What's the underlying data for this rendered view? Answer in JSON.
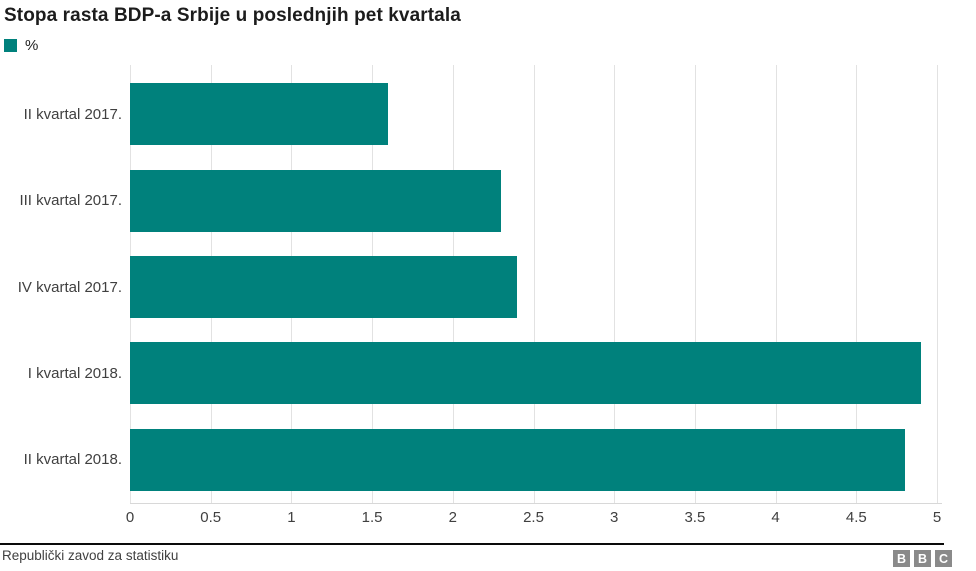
{
  "title": "Stopa rasta BDP-a Srbije u poslednjih pet kvartala",
  "legend": {
    "label": "%"
  },
  "chart_data": {
    "type": "bar",
    "orientation": "horizontal",
    "title": "Stopa rasta BDP-a Srbije u poslednjih pet kvartala",
    "series_name": "%",
    "categories": [
      "II kvartal 2017.",
      "III kvartal 2017.",
      "IV kvartal 2017.",
      "I kvartal 2018.",
      "II kvartal 2018."
    ],
    "values": [
      1.6,
      2.3,
      2.4,
      4.9,
      4.8
    ],
    "xlabel": "",
    "ylabel": "",
    "xlim": [
      0,
      5
    ],
    "x_ticks": [
      "0",
      "0.5",
      "1",
      "1.5",
      "2",
      "2.5",
      "3",
      "3.5",
      "4",
      "4.5",
      "5"
    ],
    "grid": true,
    "legend_position": "top-left"
  },
  "footer": {
    "source": "Republički zavod za statistiku",
    "logo_letters": [
      "B",
      "B",
      "C"
    ]
  },
  "colors": {
    "bar": "#00817c",
    "grid": "#e2e2e2",
    "axis_line": "#d8d8d8",
    "tick_text": "#404040",
    "title_text": "#1c1c1c",
    "footer_line": "#0a0a0a",
    "logo_bg": "#8a8a8a"
  }
}
